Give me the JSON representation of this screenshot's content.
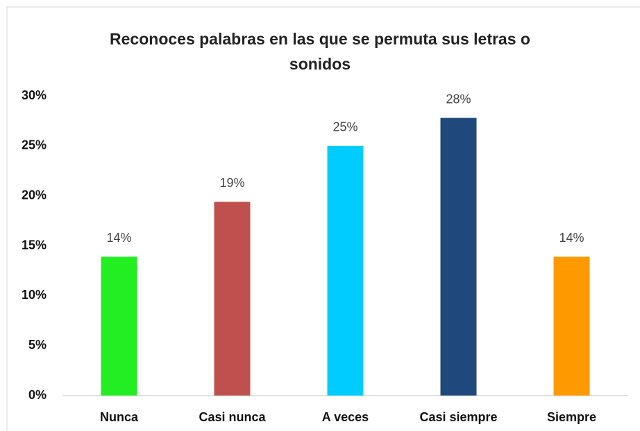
{
  "chart_data": {
    "type": "bar",
    "title": "Reconoces palabras en las que se permuta sus letras o sonidos",
    "categories": [
      "Nunca",
      "Casi nunca",
      "A veces",
      "Casi siempre",
      "Siempre"
    ],
    "values": [
      13.9,
      19.4,
      25,
      27.8,
      13.9
    ],
    "value_labels": [
      "14%",
      "19%",
      "25%",
      "28%",
      "14%"
    ],
    "colors": [
      "#22ee22",
      "#c0504d",
      "#00ccff",
      "#1f497d",
      "#ff9900"
    ],
    "ylim": [
      0,
      30
    ],
    "yticks": [
      {
        "value": 0,
        "label": "0%"
      },
      {
        "value": 5,
        "label": "5%"
      },
      {
        "value": 10,
        "label": "10%"
      },
      {
        "value": 15,
        "label": "15%"
      },
      {
        "value": 20,
        "label": "20%"
      },
      {
        "value": 25,
        "label": "25%"
      },
      {
        "value": 30,
        "label": "30%"
      }
    ],
    "grid": false
  }
}
